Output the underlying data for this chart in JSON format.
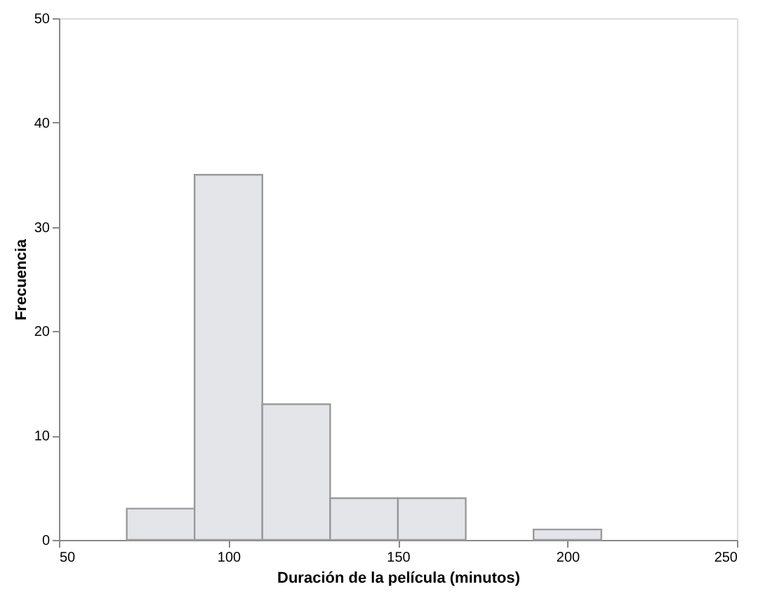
{
  "chart_data": {
    "type": "histogram",
    "xlabel": "Duración de la película (minutos)",
    "ylabel": "Frecuencia",
    "bins": [
      70,
      90,
      110,
      130,
      150,
      170,
      190,
      210
    ],
    "values": [
      3,
      35,
      13,
      4,
      4,
      0,
      1
    ],
    "color": "#e3e5e9",
    "xlim": [
      50,
      250
    ],
    "xticks": [
      50,
      100,
      150,
      200,
      250
    ],
    "ylim": [
      0,
      50
    ],
    "yticks": [
      0,
      10,
      20,
      30,
      40,
      50
    ],
    "grid": false
  }
}
